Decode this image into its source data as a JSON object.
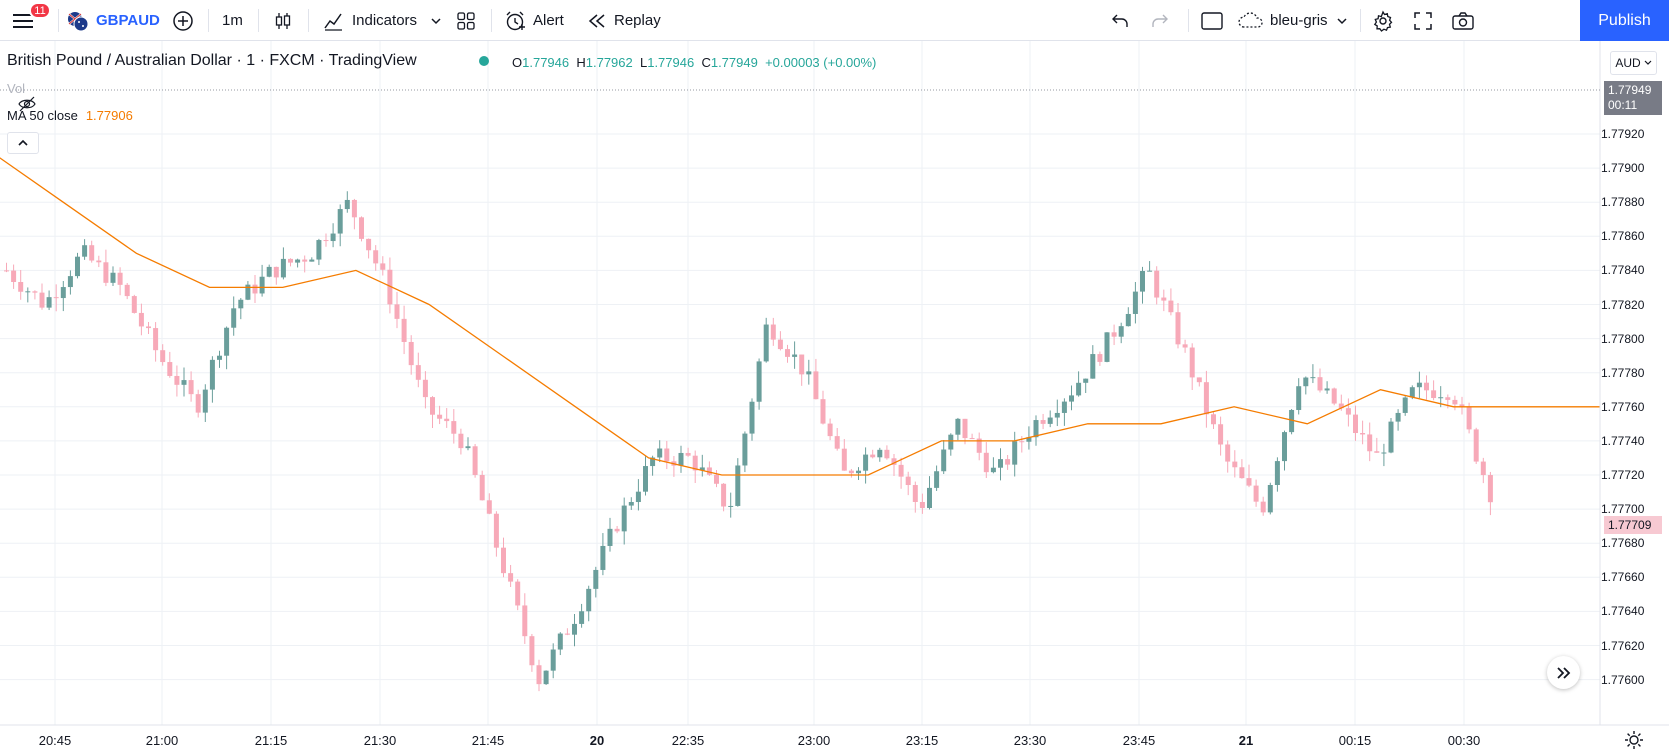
{
  "toolbar": {
    "notifications_count": "11",
    "symbol": "GBPAUD",
    "interval": "1m",
    "indicators_label": "Indicators",
    "alert_label": "Alert",
    "replay_label": "Replay",
    "layout_name": "bleu-gris",
    "publish_label": "Publish"
  },
  "legend": {
    "title": "British Pound / Australian Dollar · 1 · FXCM · TradingView",
    "open_label": "O",
    "open": "1.77946",
    "high_label": "H",
    "high": "1.77962",
    "low_label": "L",
    "low": "1.77946",
    "close_label": "C",
    "close": "1.77949",
    "change": "+0.00003 (+0.00%)",
    "vol_label": "Vol",
    "ma_label": "MA 50 close",
    "ma_value": "1.77906"
  },
  "price_axis": {
    "currency": "AUD",
    "current_price": "1.77949",
    "countdown": "00:11",
    "last_price": "1.77709",
    "labels": [
      "1.77920",
      "1.77900",
      "1.77880",
      "1.77860",
      "1.77840",
      "1.77820",
      "1.77800",
      "1.77780",
      "1.77760",
      "1.77740",
      "1.77720",
      "1.77700",
      "1.77680",
      "1.77660",
      "1.77640",
      "1.77620",
      "1.77600"
    ]
  },
  "time_axis": {
    "labels": [
      "20:45",
      "21:00",
      "21:15",
      "21:30",
      "21:45",
      "20",
      "22:35",
      "23:00",
      "23:15",
      "23:30",
      "23:45",
      "21",
      "00:15",
      "00:30"
    ]
  },
  "colors": {
    "up": "#6a9e9b",
    "down": "#f7a9b8",
    "ma": "#f57c00",
    "accent": "#2962ff",
    "grid": "#eef1f5"
  },
  "chart_data": {
    "type": "candlestick",
    "y_range": [
      1.7759,
      1.7798
    ],
    "x_categories": [
      "20:45",
      "21:00",
      "21:15",
      "21:30",
      "21:45",
      "20",
      "22:35",
      "23:00",
      "23:15",
      "23:30",
      "23:45",
      "21",
      "00:15",
      "00:30"
    ],
    "ma_series_name": "MA 50 close",
    "ma": [
      1.7791,
      1.7788,
      1.7785,
      1.7783,
      1.7783,
      1.7784,
      1.7782,
      1.7779,
      1.7776,
      1.7773,
      1.7772,
      1.7772,
      1.7772,
      1.7774,
      1.7774,
      1.7775,
      1.7775,
      1.7776,
      1.7775,
      1.7777,
      1.7776,
      1.7776,
      1.7776
    ],
    "closes": [
      1.7784,
      1.7782,
      1.7785,
      1.7783,
      1.7779,
      1.7776,
      1.7782,
      1.7784,
      1.7785,
      1.7788,
      1.7783,
      1.7776,
      1.7774,
      1.7767,
      1.776,
      1.7764,
      1.7769,
      1.7773,
      1.7773,
      1.777,
      1.7781,
      1.7778,
      1.7772,
      1.7774,
      1.777,
      1.7775,
      1.7772,
      1.7775,
      1.7777,
      1.778,
      1.7784,
      1.7779,
      1.7773,
      1.777,
      1.7778,
      1.7776,
      1.7773,
      1.7777,
      1.7777,
      1.7771
    ]
  }
}
